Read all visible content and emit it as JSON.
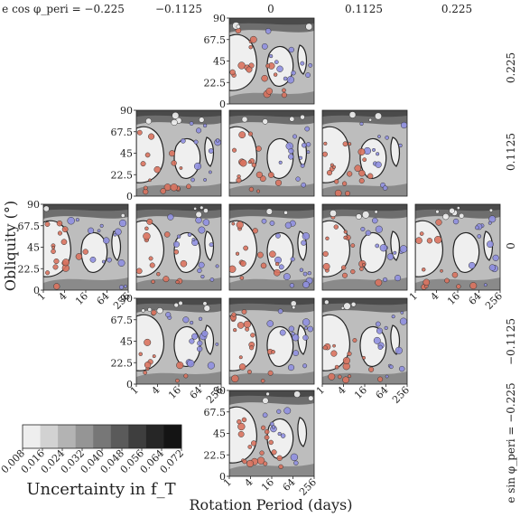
{
  "column_headers": [
    "e cos φ_peri = −0.225",
    "−0.1125",
    "0",
    "0.1125",
    "0.225"
  ],
  "row_headers": [
    "0.225",
    "0.1125",
    "0",
    "−0.1125",
    "e sin φ_peri = −0.225"
  ],
  "y_axis_label": "Obliquity (°)",
  "x_axis_label": "Rotation Period (days)",
  "y_tick_labels": [
    "0",
    "22.5",
    "45",
    "67.5",
    "90"
  ],
  "x_tick_labels": [
    "1",
    "4",
    "16",
    "64",
    "256"
  ],
  "colorbar": {
    "label": "Uncertainty in f_T",
    "tick_labels": [
      "0.008",
      "0.016",
      "0.024",
      "0.032",
      "0.040",
      "0.048",
      "0.056",
      "0.064",
      "0.072"
    ],
    "colors": [
      "#eeeeee",
      "#d2d2d2",
      "#b3b3b3",
      "#959595",
      "#777777",
      "#5a5a5a",
      "#3e3e3e",
      "#262626",
      "#141414"
    ]
  },
  "colors": {
    "hot_point": "#d9725e",
    "cold_point": "#8f8fe0",
    "neutral_point": "#f2f2f2"
  },
  "chart_data": {
    "type": "heatmap",
    "description_of_grid": "Grid of contour panels indexed by e cos φ_peri (columns) and e sin φ_peri (rows)",
    "x": {
      "label": "Rotation Period (days)",
      "scale": "log2",
      "range": [
        1,
        256
      ],
      "ticks": [
        1,
        4,
        16,
        64,
        256
      ]
    },
    "y": {
      "label": "Obliquity (°)",
      "range": [
        0,
        90
      ],
      "ticks": [
        0,
        22.5,
        45,
        67.5,
        90
      ]
    },
    "e_cos_phi_peri": [
      -0.225,
      -0.1125,
      0,
      0.1125,
      0.225
    ],
    "e_sin_phi_peri": [
      0.225,
      0.1125,
      0,
      -0.1125,
      -0.225
    ],
    "panels": [
      {
        "e_cos": 0,
        "e_sin": 0.225
      },
      {
        "e_cos": -0.1125,
        "e_sin": 0.1125
      },
      {
        "e_cos": 0,
        "e_sin": 0.1125
      },
      {
        "e_cos": 0.1125,
        "e_sin": 0.1125
      },
      {
        "e_cos": -0.225,
        "e_sin": 0
      },
      {
        "e_cos": -0.1125,
        "e_sin": 0
      },
      {
        "e_cos": 0,
        "e_sin": 0
      },
      {
        "e_cos": 0.1125,
        "e_sin": 0
      },
      {
        "e_cos": 0.225,
        "e_sin": 0
      },
      {
        "e_cos": -0.1125,
        "e_sin": -0.1125
      },
      {
        "e_cos": 0,
        "e_sin": -0.1125
      },
      {
        "e_cos": 0.1125,
        "e_sin": -0.1125
      },
      {
        "e_cos": 0,
        "e_sin": -0.225
      }
    ],
    "colorbar_levels": [
      0.008,
      0.016,
      0.024,
      0.032,
      0.04,
      0.048,
      0.056,
      0.064,
      0.072
    ]
  }
}
